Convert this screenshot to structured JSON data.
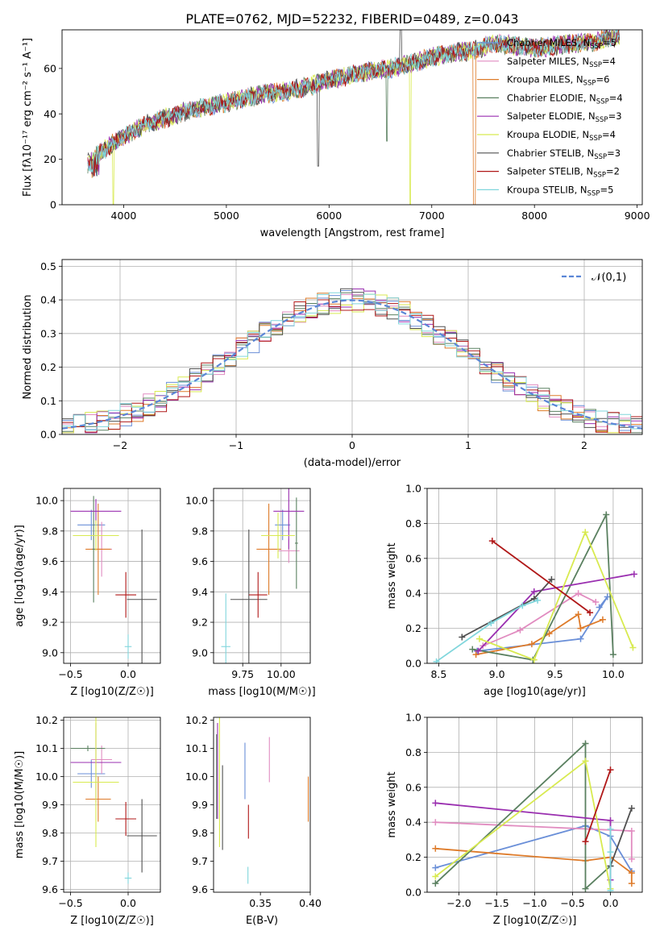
{
  "figure_title": "PLATE=0762, MJD=52232, FIBERID=0489, z=0.043",
  "colors": {
    "Chabrier MILES": "#6a8fd8",
    "Salpeter MILES": "#e18cc0",
    "Kroupa MILES": "#de7b2a",
    "Chabrier ELODIE": "#5a8060",
    "Salpeter ELODIE": "#9a2fb0",
    "Kroupa ELODIE": "#d8ea50",
    "Chabrier STELIB": "#505050",
    "Salpeter STELIB": "#b01818",
    "Kroupa STELIB": "#80d6dc"
  },
  "legend_entries": [
    {
      "label": "Chabrier MILES, N",
      "sub": "SSP",
      "suffix": "=5",
      "key": "Chabrier MILES"
    },
    {
      "label": "Salpeter MILES, N",
      "sub": "SSP",
      "suffix": "=4",
      "key": "Salpeter MILES"
    },
    {
      "label": "Kroupa MILES, N",
      "sub": "SSP",
      "suffix": "=6",
      "key": "Kroupa MILES"
    },
    {
      "label": "Chabrier ELODIE, N",
      "sub": "SSP",
      "suffix": "=4",
      "key": "Chabrier ELODIE"
    },
    {
      "label": "Salpeter ELODIE, N",
      "sub": "SSP",
      "suffix": "=3",
      "key": "Salpeter ELODIE"
    },
    {
      "label": "Kroupa ELODIE, N",
      "sub": "SSP",
      "suffix": "=4",
      "key": "Kroupa ELODIE"
    },
    {
      "label": "Chabrier STELIB, N",
      "sub": "SSP",
      "suffix": "=3",
      "key": "Chabrier STELIB"
    },
    {
      "label": "Salpeter STELIB, N",
      "sub": "SSP",
      "suffix": "=2",
      "key": "Salpeter STELIB"
    },
    {
      "label": "Kroupa STELIB, N",
      "sub": "SSP",
      "suffix": "=5",
      "key": "Kroupa STELIB"
    }
  ],
  "chart_data": [
    {
      "id": "spectrum",
      "type": "line",
      "title": "",
      "xlabel": "wavelength [Angstrom, rest frame]",
      "ylabel": "Flux [fλ10⁻¹⁷ erg cm⁻² s⁻¹ A⁻¹]",
      "xlim": [
        3400,
        9050
      ],
      "ylim": [
        0,
        77
      ],
      "xticks": [
        4000,
        5000,
        6000,
        7000,
        8000,
        9000
      ],
      "yticks": [
        0,
        20,
        40,
        60
      ],
      "grid": false,
      "legend": "top-right",
      "x": [
        3650,
        3800,
        4000,
        4200,
        4400,
        4600,
        4800,
        5000,
        5200,
        5400,
        5600,
        5800,
        6000,
        6200,
        6400,
        6600,
        6800,
        7000,
        7200,
        7400,
        7600,
        7800,
        8000,
        8200,
        8400,
        8600,
        8800
      ],
      "y": [
        18,
        24,
        30,
        35,
        38,
        41,
        43,
        45,
        47,
        49,
        50,
        52,
        55,
        57,
        59,
        60,
        62,
        65,
        67,
        68,
        71,
        70,
        69,
        70,
        71,
        72,
        74
      ],
      "features": [
        {
          "x": 3900,
          "y_min": 0,
          "note": "Kroupa ELODIE drop"
        },
        {
          "x": 5893,
          "y_min": 17
        },
        {
          "x": 6563,
          "y_min": 28
        },
        {
          "x": 6720,
          "y_max": 77
        },
        {
          "x": 6800,
          "y_min": 0
        },
        {
          "x": 7420,
          "y_min": 0
        }
      ]
    },
    {
      "id": "residuals",
      "type": "histogram",
      "xlabel": "(data-model)/error",
      "ylabel": "Normed distribution",
      "xlim": [
        -2.5,
        2.5
      ],
      "ylim": [
        0,
        0.52
      ],
      "xticks": [
        -2,
        -1,
        0,
        1,
        2
      ],
      "yticks": [
        0.0,
        0.1,
        0.2,
        0.3,
        0.4,
        0.5
      ],
      "grid": true,
      "legend": "top-right",
      "bin_width": 0.1,
      "reference_curve": {
        "name": "𝒩(0,1)",
        "mean": 0,
        "sigma": 1
      }
    },
    {
      "id": "age_vs_Z",
      "type": "errorbar",
      "xlabel": "Z [log10(Z/Z☉)]",
      "ylabel": "age  [log10(age/yr)]",
      "xlim": [
        -0.56,
        0.28
      ],
      "ylim": [
        8.93,
        10.08
      ],
      "xticks": [
        -0.5,
        0.0
      ],
      "yticks": [
        9.0,
        9.2,
        9.4,
        9.6,
        9.8,
        10.0
      ],
      "grid": true,
      "points": [
        {
          "key": "Chabrier MILES",
          "x": -0.32,
          "xerr": 0.12,
          "y": 9.84,
          "yerr": 0.1
        },
        {
          "key": "Salpeter MILES",
          "x": -0.23,
          "xerr": 0.09,
          "y": 9.68,
          "yerr": 0.18
        },
        {
          "key": "Kroupa MILES",
          "x": -0.26,
          "xerr": 0.11,
          "y": 9.68,
          "yerr": 0.3
        },
        {
          "key": "Chabrier ELODIE",
          "x": -0.3,
          "xerr": 0.01,
          "y": 9.68,
          "yerr": 0.35
        },
        {
          "key": "Salpeter ELODIE",
          "x": -0.28,
          "xerr": 0.22,
          "y": 9.93,
          "yerr": 0.08
        },
        {
          "key": "Kroupa ELODIE",
          "x": -0.28,
          "xerr": 0.2,
          "y": 9.77,
          "yerr": 0.1
        },
        {
          "key": "Chabrier STELIB",
          "x": 0.12,
          "xerr": 0.13,
          "y": 9.35,
          "yerr": 0.46
        },
        {
          "key": "Salpeter STELIB",
          "x": -0.02,
          "xerr": 0.09,
          "y": 9.38,
          "yerr": 0.15
        },
        {
          "key": "Kroupa STELIB",
          "x": 0.0,
          "xerr": 0.03,
          "y": 9.04,
          "yerr": 0.08
        }
      ]
    },
    {
      "id": "age_vs_mass",
      "type": "errorbar",
      "xlabel": "mass [log10(M/M☉)]",
      "ylabel": "",
      "xlim": [
        9.56,
        10.19
      ],
      "ylim": [
        8.93,
        10.08
      ],
      "xticks": [
        9.75,
        10.0
      ],
      "yticks": [
        9.0,
        9.2,
        9.4,
        9.6,
        9.8,
        10.0
      ],
      "grid": true,
      "points": [
        {
          "key": "Chabrier MILES",
          "x": 10.01,
          "xerr": 0.05,
          "y": 9.84,
          "yerr": 0.1
        },
        {
          "key": "Salpeter MILES",
          "x": 10.05,
          "xerr": 0.07,
          "y": 9.67,
          "yerr": 0.08
        },
        {
          "key": "Kroupa MILES",
          "x": 9.92,
          "xerr": 0.08,
          "y": 9.68,
          "yerr": 0.3
        },
        {
          "key": "Chabrier ELODIE",
          "x": 10.1,
          "xerr": 0.01,
          "y": 9.72,
          "yerr": 0.3
        },
        {
          "key": "Salpeter ELODIE",
          "x": 10.05,
          "xerr": 0.1,
          "y": 9.93,
          "yerr": 0.25
        },
        {
          "key": "Kroupa ELODIE",
          "x": 9.98,
          "xerr": 0.11,
          "y": 9.77,
          "yerr": 0.15
        },
        {
          "key": "Chabrier STELIB",
          "x": 9.79,
          "xerr": 0.12,
          "y": 9.35,
          "yerr": 0.46
        },
        {
          "key": "Salpeter STELIB",
          "x": 9.85,
          "xerr": 0.06,
          "y": 9.38,
          "yerr": 0.15
        },
        {
          "key": "Kroupa STELIB",
          "x": 9.64,
          "xerr": 0.03,
          "y": 9.04,
          "yerr": 0.35
        }
      ]
    },
    {
      "id": "weight_vs_age",
      "type": "line",
      "xlabel": "age  [log10(age/yr)]",
      "ylabel": "mass weight",
      "xlim": [
        8.4,
        10.25
      ],
      "ylim": [
        0,
        1.0
      ],
      "xticks": [
        8.5,
        9.0,
        9.5,
        10.0
      ],
      "yticks": [
        0.0,
        0.2,
        0.4,
        0.6,
        0.8,
        1.0
      ],
      "grid": true,
      "series": [
        {
          "key": "Chabrier MILES",
          "x": [
            8.83,
            9.72,
            9.95,
            9.88
          ],
          "y": [
            0.07,
            0.14,
            0.38,
            0.32
          ]
        },
        {
          "key": "Salpeter MILES",
          "x": [
            8.88,
            9.2,
            9.7,
            9.85
          ],
          "y": [
            0.1,
            0.19,
            0.4,
            0.35
          ]
        },
        {
          "key": "Kroupa MILES",
          "x": [
            8.82,
            9.3,
            9.45,
            9.7,
            9.72,
            9.91
          ],
          "y": [
            0.05,
            0.11,
            0.17,
            0.28,
            0.2,
            0.25
          ]
        },
        {
          "key": "Chabrier ELODIE",
          "x": [
            8.79,
            9.31,
            9.94,
            10.0
          ],
          "y": [
            0.08,
            0.02,
            0.85,
            0.05
          ]
        },
        {
          "key": "Salpeter ELODIE",
          "x": [
            8.84,
            9.32,
            10.18
          ],
          "y": [
            0.07,
            0.41,
            0.51
          ]
        },
        {
          "key": "Kroupa ELODIE",
          "x": [
            8.85,
            9.32,
            9.76,
            10.17
          ],
          "y": [
            0.14,
            0.02,
            0.75,
            0.09
          ]
        },
        {
          "key": "Chabrier STELIB",
          "x": [
            8.7,
            9.32,
            9.47
          ],
          "y": [
            0.15,
            0.37,
            0.48
          ]
        },
        {
          "key": "Salpeter STELIB",
          "x": [
            8.96,
            9.8
          ],
          "y": [
            0.7,
            0.29
          ]
        },
        {
          "key": "Kroupa STELIB",
          "x": [
            8.48,
            8.95,
            9.22,
            9.35
          ],
          "y": [
            0.01,
            0.23,
            0.33,
            0.36
          ]
        }
      ]
    },
    {
      "id": "mass_vs_Z",
      "type": "errorbar",
      "xlabel": "Z [log10(Z/Z☉)]",
      "ylabel": "mass [log10(M/M☉)]",
      "xlim": [
        -0.56,
        0.28
      ],
      "ylim": [
        9.59,
        10.21
      ],
      "xticks": [
        -0.5,
        0.0
      ],
      "yticks": [
        9.6,
        9.7,
        9.8,
        9.9,
        10.0,
        10.1,
        10.2
      ],
      "grid": true,
      "points": [
        {
          "key": "Chabrier MILES",
          "x": -0.32,
          "xerr": 0.12,
          "y": 10.01,
          "yerr": 0.05
        },
        {
          "key": "Salpeter MILES",
          "x": -0.23,
          "xerr": 0.09,
          "y": 10.06,
          "yerr": 0.05
        },
        {
          "key": "Kroupa MILES",
          "x": -0.26,
          "xerr": 0.11,
          "y": 9.92,
          "yerr": 0.08
        },
        {
          "key": "Chabrier ELODIE",
          "x": -0.35,
          "xerr": 0.15,
          "y": 10.1,
          "yerr": 0.01
        },
        {
          "key": "Salpeter ELODIE",
          "x": -0.28,
          "xerr": 0.22,
          "y": 10.05,
          "yerr": 0.14
        },
        {
          "key": "Kroupa ELODIE",
          "x": -0.28,
          "xerr": 0.2,
          "y": 9.98,
          "yerr": 0.23
        },
        {
          "key": "Chabrier STELIB",
          "x": 0.12,
          "xerr": 0.13,
          "y": 9.79,
          "yerr": 0.13
        },
        {
          "key": "Salpeter STELIB",
          "x": -0.02,
          "xerr": 0.09,
          "y": 9.85,
          "yerr": 0.06
        },
        {
          "key": "Kroupa STELIB",
          "x": 0.0,
          "xerr": 0.03,
          "y": 9.64,
          "yerr": 0.02
        }
      ]
    },
    {
      "id": "mass_vs_EBV",
      "type": "errorbar",
      "xlabel": "E(B-V)",
      "ylabel": "",
      "xlim": [
        0.303,
        0.4
      ],
      "ylim": [
        9.59,
        10.21
      ],
      "xticks": [
        0.35,
        0.4
      ],
      "yticks": [
        9.6,
        9.7,
        9.8,
        9.9,
        10.0,
        10.1,
        10.2
      ],
      "grid": false,
      "points": [
        {
          "key": "Chabrier MILES",
          "x": 0.3345,
          "y": 10.02,
          "yerr": 0.1
        },
        {
          "key": "Salpeter MILES",
          "x": 0.359,
          "y": 10.06,
          "yerr": 0.08
        },
        {
          "key": "Kroupa MILES",
          "x": 0.398,
          "y": 9.92,
          "yerr": 0.08
        },
        {
          "key": "Chabrier ELODIE",
          "x": 0.306,
          "y": 10.0,
          "yerr": 0.15
        },
        {
          "key": "Salpeter ELODIE",
          "x": 0.307,
          "y": 10.02,
          "yerr": 0.17
        },
        {
          "key": "Kroupa ELODIE",
          "x": 0.309,
          "y": 9.98,
          "yerr": 0.23
        },
        {
          "key": "Chabrier STELIB",
          "x": 0.312,
          "y": 9.89,
          "yerr": 0.15
        },
        {
          "key": "Salpeter STELIB",
          "x": 0.338,
          "y": 9.84,
          "yerr": 0.06
        },
        {
          "key": "Kroupa STELIB",
          "x": 0.3375,
          "y": 9.65,
          "yerr": 0.03
        }
      ]
    },
    {
      "id": "weight_vs_Z",
      "type": "line",
      "xlabel": "Z [log10(Z/Z☉)]",
      "ylabel": "mass weight",
      "xlim": [
        -2.42,
        0.42
      ],
      "ylim": [
        0,
        1.0
      ],
      "xticks": [
        -2.0,
        -1.5,
        -1.0,
        -0.5,
        0.0
      ],
      "yticks": [
        0.0,
        0.2,
        0.4,
        0.6,
        0.8,
        1.0
      ],
      "grid": true,
      "series": [
        {
          "key": "Chabrier MILES",
          "x": [
            -2.31,
            -0.33,
            0.0,
            0.28
          ],
          "y": [
            0.14,
            0.38,
            0.32,
            0.12
          ]
        },
        {
          "key": "Salpeter MILES",
          "x": [
            -2.31,
            0.28,
            0.28
          ],
          "y": [
            0.4,
            0.35,
            0.19
          ]
        },
        {
          "key": "Kroupa MILES",
          "x": [
            -2.31,
            -0.33,
            0.0,
            0.28,
            0.28
          ],
          "y": [
            0.25,
            0.18,
            0.2,
            0.11,
            0.05
          ]
        },
        {
          "key": "Chabrier ELODIE",
          "x": [
            -2.31,
            -0.33,
            -0.33,
            0.0
          ],
          "y": [
            0.05,
            0.85,
            0.02,
            0.15
          ]
        },
        {
          "key": "Salpeter ELODIE",
          "x": [
            -2.31,
            0.0,
            0.0
          ],
          "y": [
            0.51,
            0.41,
            0.07
          ]
        },
        {
          "key": "Kroupa ELODIE",
          "x": [
            -2.31,
            -0.33,
            0.0
          ],
          "y": [
            0.09,
            0.75,
            0.02
          ]
        },
        {
          "key": "Chabrier STELIB",
          "x": [
            0.0,
            0.28
          ],
          "y": [
            0.15,
            0.48
          ]
        },
        {
          "key": "Salpeter STELIB",
          "x": [
            -0.33,
            0.0
          ],
          "y": [
            0.29,
            0.7
          ]
        },
        {
          "key": "Kroupa STELIB",
          "x": [
            0.0,
            0.0,
            0.0
          ],
          "y": [
            0.01,
            0.23,
            0.36
          ]
        }
      ]
    }
  ]
}
